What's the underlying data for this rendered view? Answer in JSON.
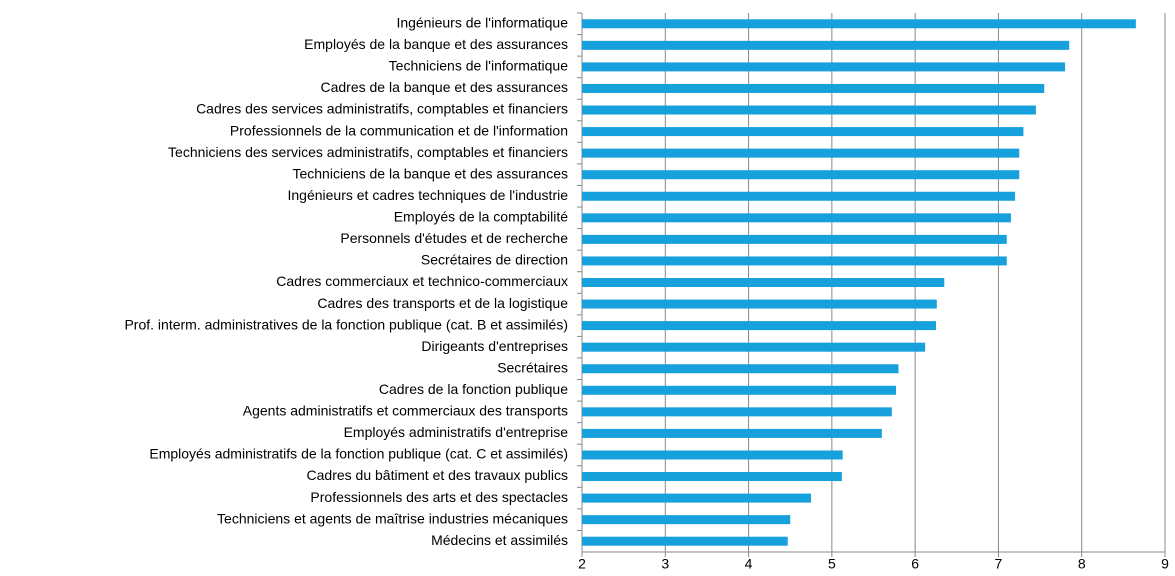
{
  "chart_data": {
    "type": "barh",
    "categories": [
      "Ingénieurs de l'informatique",
      "Employés de la banque et des assurances",
      "Techniciens de l'informatique",
      "Cadres de la banque et des assurances",
      "Cadres des services administratifs, comptables et financiers",
      "Professionnels de la communication et de l'information",
      "Techniciens des services administratifs, comptables et financiers",
      "Techniciens de la banque et des assurances",
      "Ingénieurs et cadres techniques de l'industrie",
      "Employés de la comptabilité",
      "Personnels d'études et de recherche",
      "Secrétaires de direction",
      "Cadres commerciaux et technico-commerciaux",
      "Cadres des transports et de la logistique",
      "Prof. interm. administratives de la fonction publique (cat. B et assimilés)",
      "Dirigeants d'entreprises",
      "Secrétaires",
      "Cadres de la fonction publique",
      "Agents administratifs et commerciaux des transports",
      "Employés administratifs d'entreprise",
      "Employés administratifs de la fonction publique (cat. C et assimilés)",
      "Cadres du bâtiment et des travaux publics",
      "Professionnels des arts et des spectacles",
      "Techniciens et agents de maîtrise industries mécaniques",
      "Médecins et assimilés"
    ],
    "values": [
      8.65,
      7.85,
      7.8,
      7.55,
      7.45,
      7.3,
      7.25,
      7.25,
      7.2,
      7.15,
      7.1,
      7.1,
      6.35,
      6.26,
      6.25,
      6.12,
      5.8,
      5.77,
      5.72,
      5.6,
      5.13,
      5.12,
      4.75,
      4.5,
      4.47
    ],
    "color": "#16a0dc",
    "xlim": [
      2,
      9
    ],
    "xticks": [
      2,
      3,
      4,
      5,
      6,
      7,
      8,
      9
    ],
    "grid": true
  }
}
